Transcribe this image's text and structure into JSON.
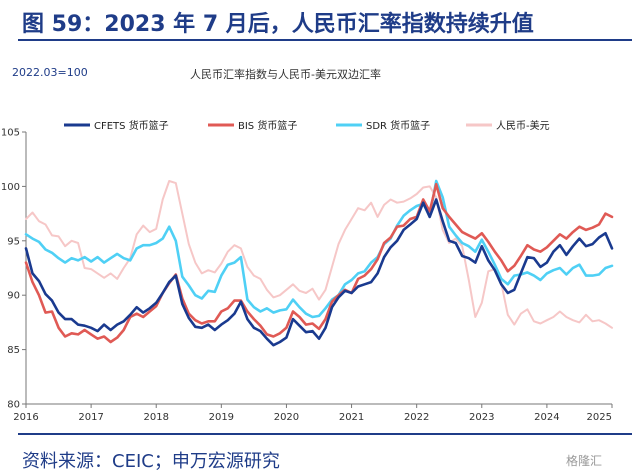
{
  "title": "图 59：2023 年 7 月后，人民币汇率指数持续升值",
  "source": "资料来源：CEIC；申万宏源研究",
  "watermark": "格隆汇",
  "chart_data": {
    "type": "line",
    "title": "人民币汇率指数与人民币-美元双边汇率",
    "base_note": "2022.03=100",
    "xlabel": "",
    "ylabel": "",
    "ylim": [
      80,
      105
    ],
    "yticks": [
      80,
      85,
      90,
      95,
      100,
      105
    ],
    "xlim": [
      2016.0,
      2025.0
    ],
    "xticks": [
      "2016",
      "2017",
      "2018",
      "2019",
      "2020",
      "2021",
      "2022",
      "2023",
      "2024",
      "2025"
    ],
    "grid": false,
    "legend": "top",
    "series": [
      {
        "name": "CFETS 货币篮子",
        "color": "#1a3a8f",
        "x": [
          2016.0,
          2016.1,
          2016.2,
          2016.3,
          2016.4,
          2016.5,
          2016.6,
          2016.7,
          2016.8,
          2016.9,
          2017.0,
          2017.1,
          2017.2,
          2017.3,
          2017.4,
          2017.5,
          2017.6,
          2017.7,
          2017.8,
          2017.9,
          2018.0,
          2018.1,
          2018.2,
          2018.3,
          2018.4,
          2018.5,
          2018.6,
          2018.7,
          2018.8,
          2018.9,
          2019.0,
          2019.1,
          2019.2,
          2019.3,
          2019.4,
          2019.5,
          2019.6,
          2019.7,
          2019.8,
          2019.9,
          2020.0,
          2020.1,
          2020.2,
          2020.3,
          2020.4,
          2020.5,
          2020.6,
          2020.7,
          2020.8,
          2020.9,
          2021.0,
          2021.1,
          2021.2,
          2021.3,
          2021.4,
          2021.5,
          2021.6,
          2021.7,
          2021.8,
          2021.9,
          2022.0,
          2022.1,
          2022.2,
          2022.3,
          2022.4,
          2022.5,
          2022.6,
          2022.7,
          2022.8,
          2022.9,
          2023.0,
          2023.1,
          2023.2,
          2023.3,
          2023.4,
          2023.5,
          2023.6,
          2023.7,
          2023.8,
          2023.9,
          2024.0,
          2024.1,
          2024.2,
          2024.3,
          2024.4,
          2024.5,
          2024.6,
          2024.7,
          2024.8,
          2024.9,
          2025.0
        ],
        "values": [
          94.3,
          92.0,
          91.3,
          90.1,
          89.5,
          88.4,
          87.8,
          87.8,
          87.3,
          87.2,
          87.0,
          86.7,
          87.3,
          86.8,
          87.3,
          87.6,
          88.2,
          88.9,
          88.4,
          88.8,
          89.3,
          90.2,
          91.2,
          91.8,
          89.2,
          87.9,
          87.1,
          87.0,
          87.3,
          86.8,
          87.3,
          87.7,
          88.3,
          89.4,
          87.8,
          87.0,
          86.7,
          86.0,
          85.4,
          85.7,
          86.1,
          87.8,
          87.2,
          86.6,
          86.7,
          86.0,
          87.0,
          88.9,
          89.8,
          90.4,
          90.2,
          90.8,
          91.0,
          91.2,
          92.0,
          93.5,
          94.4,
          95.0,
          96.0,
          96.5,
          97.0,
          98.5,
          97.2,
          98.8,
          96.8,
          95.0,
          94.8,
          93.6,
          93.4,
          93.0,
          94.5,
          93.2,
          92.3,
          91.0,
          90.2,
          90.5,
          92.0,
          93.5,
          93.4,
          92.6,
          93.0,
          94.0,
          94.6,
          93.7,
          94.5,
          95.2,
          94.5,
          94.7,
          95.3,
          95.7,
          94.3
        ]
      },
      {
        "name": "BIS 货币篮子",
        "color": "#e05a55",
        "x": [
          2016.0,
          2016.1,
          2016.2,
          2016.3,
          2016.4,
          2016.5,
          2016.6,
          2016.7,
          2016.8,
          2016.9,
          2017.0,
          2017.1,
          2017.2,
          2017.3,
          2017.4,
          2017.5,
          2017.6,
          2017.7,
          2017.8,
          2017.9,
          2018.0,
          2018.1,
          2018.2,
          2018.3,
          2018.4,
          2018.5,
          2018.6,
          2018.7,
          2018.8,
          2018.9,
          2019.0,
          2019.1,
          2019.2,
          2019.3,
          2019.4,
          2019.5,
          2019.6,
          2019.7,
          2019.8,
          2019.9,
          2020.0,
          2020.1,
          2020.2,
          2020.3,
          2020.4,
          2020.5,
          2020.6,
          2020.7,
          2020.8,
          2020.9,
          2021.0,
          2021.1,
          2021.2,
          2021.3,
          2021.4,
          2021.5,
          2021.6,
          2021.7,
          2021.8,
          2021.9,
          2022.0,
          2022.1,
          2022.2,
          2022.3,
          2022.4,
          2022.5,
          2022.6,
          2022.7,
          2022.8,
          2022.9,
          2023.0,
          2023.1,
          2023.2,
          2023.3,
          2023.4,
          2023.5,
          2023.6,
          2023.7,
          2023.8,
          2023.9,
          2024.0,
          2024.1,
          2024.2,
          2024.3,
          2024.4,
          2024.5,
          2024.6,
          2024.7,
          2024.8,
          2024.9,
          2025.0
        ],
        "values": [
          93.0,
          91.2,
          90.0,
          88.4,
          88.5,
          87.0,
          86.2,
          86.5,
          86.4,
          86.8,
          86.4,
          86.0,
          86.2,
          85.7,
          86.1,
          86.8,
          88.0,
          88.3,
          88.0,
          88.5,
          89.0,
          90.2,
          91.1,
          91.9,
          89.7,
          88.3,
          87.7,
          87.4,
          87.6,
          87.6,
          88.5,
          88.8,
          89.5,
          89.5,
          88.5,
          87.8,
          87.2,
          86.4,
          86.2,
          86.5,
          87.0,
          88.5,
          88.0,
          87.3,
          87.4,
          86.9,
          87.8,
          89.4,
          90.0,
          90.5,
          90.2,
          91.5,
          91.8,
          92.4,
          93.3,
          94.8,
          95.3,
          96.3,
          96.4,
          97.0,
          97.2,
          98.8,
          97.7,
          100.2,
          98.0,
          97.2,
          96.5,
          95.8,
          95.5,
          95.2,
          95.7,
          94.9,
          94.0,
          93.2,
          92.2,
          92.7,
          93.6,
          94.6,
          94.2,
          94.0,
          94.4,
          95.0,
          95.6,
          95.2,
          95.8,
          96.3,
          96.0,
          96.2,
          96.5,
          97.5,
          97.2
        ]
      },
      {
        "name": "SDR 货币篮子",
        "color": "#4fd0f5",
        "x": [
          2016.0,
          2016.1,
          2016.2,
          2016.3,
          2016.4,
          2016.5,
          2016.6,
          2016.7,
          2016.8,
          2016.9,
          2017.0,
          2017.1,
          2017.2,
          2017.3,
          2017.4,
          2017.5,
          2017.6,
          2017.7,
          2017.8,
          2017.9,
          2018.0,
          2018.1,
          2018.2,
          2018.3,
          2018.4,
          2018.5,
          2018.6,
          2018.7,
          2018.8,
          2018.9,
          2019.0,
          2019.1,
          2019.2,
          2019.3,
          2019.4,
          2019.5,
          2019.6,
          2019.7,
          2019.8,
          2019.9,
          2020.0,
          2020.1,
          2020.2,
          2020.3,
          2020.4,
          2020.5,
          2020.6,
          2020.7,
          2020.8,
          2020.9,
          2021.0,
          2021.1,
          2021.2,
          2021.3,
          2021.4,
          2021.5,
          2021.6,
          2021.7,
          2021.8,
          2021.9,
          2022.0,
          2022.1,
          2022.2,
          2022.3,
          2022.4,
          2022.5,
          2022.6,
          2022.7,
          2022.8,
          2022.9,
          2023.0,
          2023.1,
          2023.2,
          2023.3,
          2023.4,
          2023.5,
          2023.6,
          2023.7,
          2023.8,
          2023.9,
          2024.0,
          2024.1,
          2024.2,
          2024.3,
          2024.4,
          2024.5,
          2024.6,
          2024.7,
          2024.8,
          2024.9,
          2025.0
        ],
        "values": [
          95.6,
          95.2,
          94.9,
          94.2,
          93.9,
          93.4,
          93.0,
          93.4,
          93.2,
          93.5,
          93.1,
          93.5,
          93.0,
          93.4,
          93.8,
          93.4,
          93.2,
          94.3,
          94.6,
          94.6,
          94.8,
          95.2,
          96.3,
          95.0,
          91.7,
          90.9,
          90.0,
          89.7,
          90.4,
          90.3,
          91.8,
          92.8,
          93.0,
          93.5,
          89.6,
          88.9,
          88.5,
          88.8,
          88.4,
          88.6,
          88.7,
          89.6,
          88.9,
          88.3,
          88.0,
          88.1,
          88.8,
          89.6,
          90.0,
          91.0,
          91.4,
          92.0,
          92.2,
          93.0,
          93.5,
          94.7,
          95.2,
          96.4,
          97.3,
          97.8,
          98.2,
          98.4,
          97.3,
          100.5,
          99.0,
          96.3,
          95.5,
          94.8,
          94.5,
          94.0,
          95.1,
          94.0,
          92.8,
          91.5,
          91.0,
          91.8,
          91.9,
          92.1,
          91.8,
          91.4,
          92.0,
          92.3,
          92.5,
          91.9,
          92.5,
          92.8,
          91.8,
          91.8,
          91.9,
          92.5,
          92.7
        ]
      },
      {
        "name": "人民币-美元",
        "color": "#f6c7c7",
        "x": [
          2016.0,
          2016.1,
          2016.2,
          2016.3,
          2016.4,
          2016.5,
          2016.6,
          2016.7,
          2016.8,
          2016.9,
          2017.0,
          2017.1,
          2017.2,
          2017.3,
          2017.4,
          2017.5,
          2017.6,
          2017.7,
          2017.8,
          2017.9,
          2018.0,
          2018.1,
          2018.2,
          2018.3,
          2018.4,
          2018.5,
          2018.6,
          2018.7,
          2018.8,
          2018.9,
          2019.0,
          2019.1,
          2019.2,
          2019.3,
          2019.4,
          2019.5,
          2019.6,
          2019.7,
          2019.8,
          2019.9,
          2020.0,
          2020.1,
          2020.2,
          2020.3,
          2020.4,
          2020.5,
          2020.6,
          2020.7,
          2020.8,
          2020.9,
          2021.0,
          2021.1,
          2021.2,
          2021.3,
          2021.4,
          2021.5,
          2021.6,
          2021.7,
          2021.8,
          2021.9,
          2022.0,
          2022.1,
          2022.2,
          2022.3,
          2022.4,
          2022.5,
          2022.6,
          2022.7,
          2022.8,
          2022.9,
          2023.0,
          2023.1,
          2023.2,
          2023.3,
          2023.4,
          2023.5,
          2023.6,
          2023.7,
          2023.8,
          2023.9,
          2024.0,
          2024.1,
          2024.2,
          2024.3,
          2024.4,
          2024.5,
          2024.6,
          2024.7,
          2024.8,
          2024.9,
          2025.0
        ],
        "values": [
          97.0,
          97.6,
          96.8,
          96.5,
          95.5,
          95.4,
          94.5,
          95.0,
          94.8,
          92.5,
          92.4,
          92.0,
          91.6,
          92.0,
          91.5,
          92.5,
          93.4,
          95.6,
          96.4,
          95.8,
          96.1,
          98.8,
          100.5,
          100.3,
          97.5,
          94.7,
          93.0,
          92.0,
          92.3,
          92.1,
          92.9,
          94.0,
          94.6,
          94.3,
          92.6,
          91.8,
          91.5,
          90.5,
          89.8,
          90.0,
          90.5,
          91.0,
          90.4,
          90.2,
          90.6,
          89.6,
          90.5,
          92.6,
          94.7,
          96.0,
          97.0,
          98.0,
          97.8,
          98.5,
          97.2,
          98.3,
          98.8,
          98.5,
          98.6,
          98.9,
          99.3,
          99.9,
          100.0,
          99.0,
          96.0,
          94.8,
          95.2,
          94.5,
          91.4,
          88.0,
          89.3,
          92.2,
          92.4,
          91.1,
          88.2,
          87.3,
          88.3,
          88.7,
          87.6,
          87.4,
          87.7,
          88.0,
          88.5,
          88.0,
          87.7,
          87.5,
          88.2,
          87.6,
          87.7,
          87.4,
          87.0
        ]
      }
    ]
  }
}
